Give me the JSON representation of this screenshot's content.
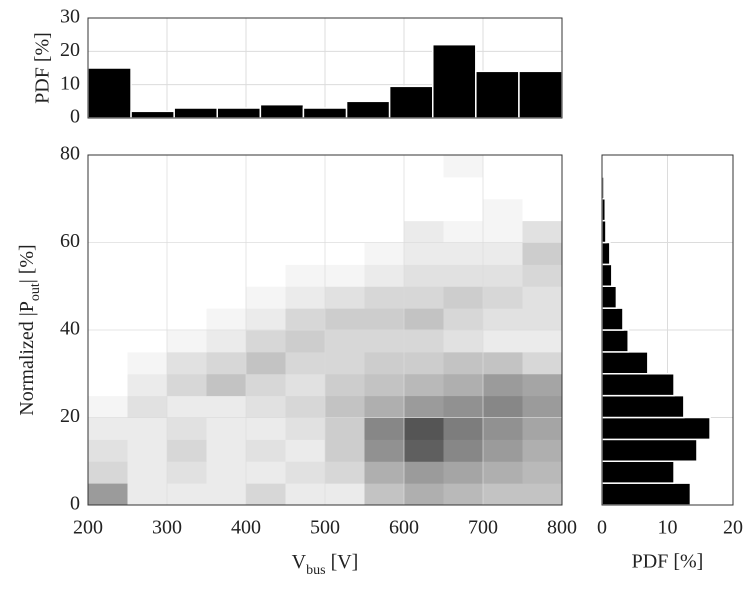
{
  "chart_data": [
    {
      "type": "histogram",
      "ylabel": "PDF [%]",
      "bins": [
        200,
        254.5,
        309.1,
        363.6,
        418.2,
        472.7,
        527.3,
        581.8,
        636.4,
        690.9,
        745.5,
        800
      ],
      "values": [
        15,
        2,
        3,
        3,
        4,
        3,
        5,
        9.5,
        22,
        14,
        14
      ],
      "xlim": [
        200,
        800
      ],
      "ylim": [
        0,
        30
      ],
      "yticks": [
        0,
        10,
        20,
        30
      ],
      "color": "#000000",
      "grid": true
    },
    {
      "type": "heatmap",
      "xlabel": [
        "V",
        "bus",
        " [V]"
      ],
      "ylabel": [
        "Normalized |P",
        "out",
        "| [%]"
      ],
      "xbins": [
        200,
        250,
        300,
        350,
        400,
        450,
        500,
        550,
        600,
        650,
        700,
        750,
        800
      ],
      "ybins": [
        0,
        5,
        10,
        15,
        20,
        25,
        30,
        35,
        40,
        45,
        50,
        55,
        60,
        65,
        70,
        75,
        80
      ],
      "z": [
        [
          0.5,
          0.1,
          0.1,
          0.1,
          0.2,
          0.1,
          0.1,
          0.3,
          0.4,
          0.35,
          0.3,
          0.3
        ],
        [
          0.2,
          0.1,
          0.15,
          0.1,
          0.1,
          0.15,
          0.2,
          0.4,
          0.5,
          0.45,
          0.4,
          0.35
        ],
        [
          0.15,
          0.1,
          0.2,
          0.1,
          0.15,
          0.1,
          0.25,
          0.55,
          0.8,
          0.6,
          0.5,
          0.4
        ],
        [
          0.1,
          0.1,
          0.15,
          0.1,
          0.1,
          0.15,
          0.25,
          0.6,
          0.85,
          0.65,
          0.55,
          0.45
        ],
        [
          0.05,
          0.15,
          0.1,
          0.1,
          0.15,
          0.2,
          0.3,
          0.4,
          0.5,
          0.55,
          0.6,
          0.5
        ],
        [
          0,
          0.1,
          0.2,
          0.3,
          0.2,
          0.15,
          0.25,
          0.3,
          0.35,
          0.4,
          0.5,
          0.45
        ],
        [
          0,
          0.05,
          0.15,
          0.2,
          0.3,
          0.2,
          0.2,
          0.25,
          0.25,
          0.3,
          0.3,
          0.2
        ],
        [
          0,
          0,
          0.05,
          0.1,
          0.2,
          0.25,
          0.2,
          0.2,
          0.2,
          0.15,
          0.1,
          0.1
        ],
        [
          0,
          0,
          0,
          0.05,
          0.1,
          0.2,
          0.25,
          0.25,
          0.3,
          0.2,
          0.15,
          0.15
        ],
        [
          0,
          0,
          0,
          0,
          0.05,
          0.1,
          0.15,
          0.2,
          0.2,
          0.25,
          0.2,
          0.15
        ],
        [
          0,
          0,
          0,
          0,
          0,
          0.05,
          0.05,
          0.1,
          0.15,
          0.15,
          0.15,
          0.2
        ],
        [
          0,
          0,
          0,
          0,
          0,
          0,
          0,
          0.05,
          0.1,
          0.1,
          0.1,
          0.25
        ],
        [
          0,
          0,
          0,
          0,
          0,
          0,
          0,
          0,
          0.1,
          0.05,
          0.05,
          0.15
        ],
        [
          0,
          0,
          0,
          0,
          0,
          0,
          0,
          0,
          0,
          0,
          0.05,
          0
        ],
        [
          0,
          0,
          0,
          0,
          0,
          0,
          0,
          0,
          0,
          0,
          0,
          0
        ],
        [
          0,
          0,
          0,
          0,
          0,
          0,
          0,
          0,
          0,
          0.05,
          0,
          0
        ]
      ],
      "xlim": [
        200,
        800
      ],
      "ylim": [
        0,
        80
      ],
      "xticks": [
        200,
        300,
        400,
        500,
        600,
        700,
        800
      ],
      "yticks": [
        0,
        20,
        40,
        60,
        80
      ],
      "grid": true
    },
    {
      "type": "histogram",
      "orientation": "horizontal",
      "xlabel": "PDF [%]",
      "bins": [
        0,
        5,
        10,
        15,
        20,
        25,
        30,
        35,
        40,
        45,
        50,
        55,
        60,
        65,
        70,
        75,
        80
      ],
      "values": [
        13.5,
        11,
        14.5,
        16.5,
        12.5,
        11,
        7,
        4,
        3.2,
        2.2,
        1.5,
        1.2,
        0.6,
        0.5,
        0.3,
        0.2
      ],
      "xlim": [
        0,
        20
      ],
      "ylim": [
        0,
        80
      ],
      "xticks": [
        0,
        10,
        20
      ],
      "color": "#000000",
      "grid": true
    }
  ]
}
